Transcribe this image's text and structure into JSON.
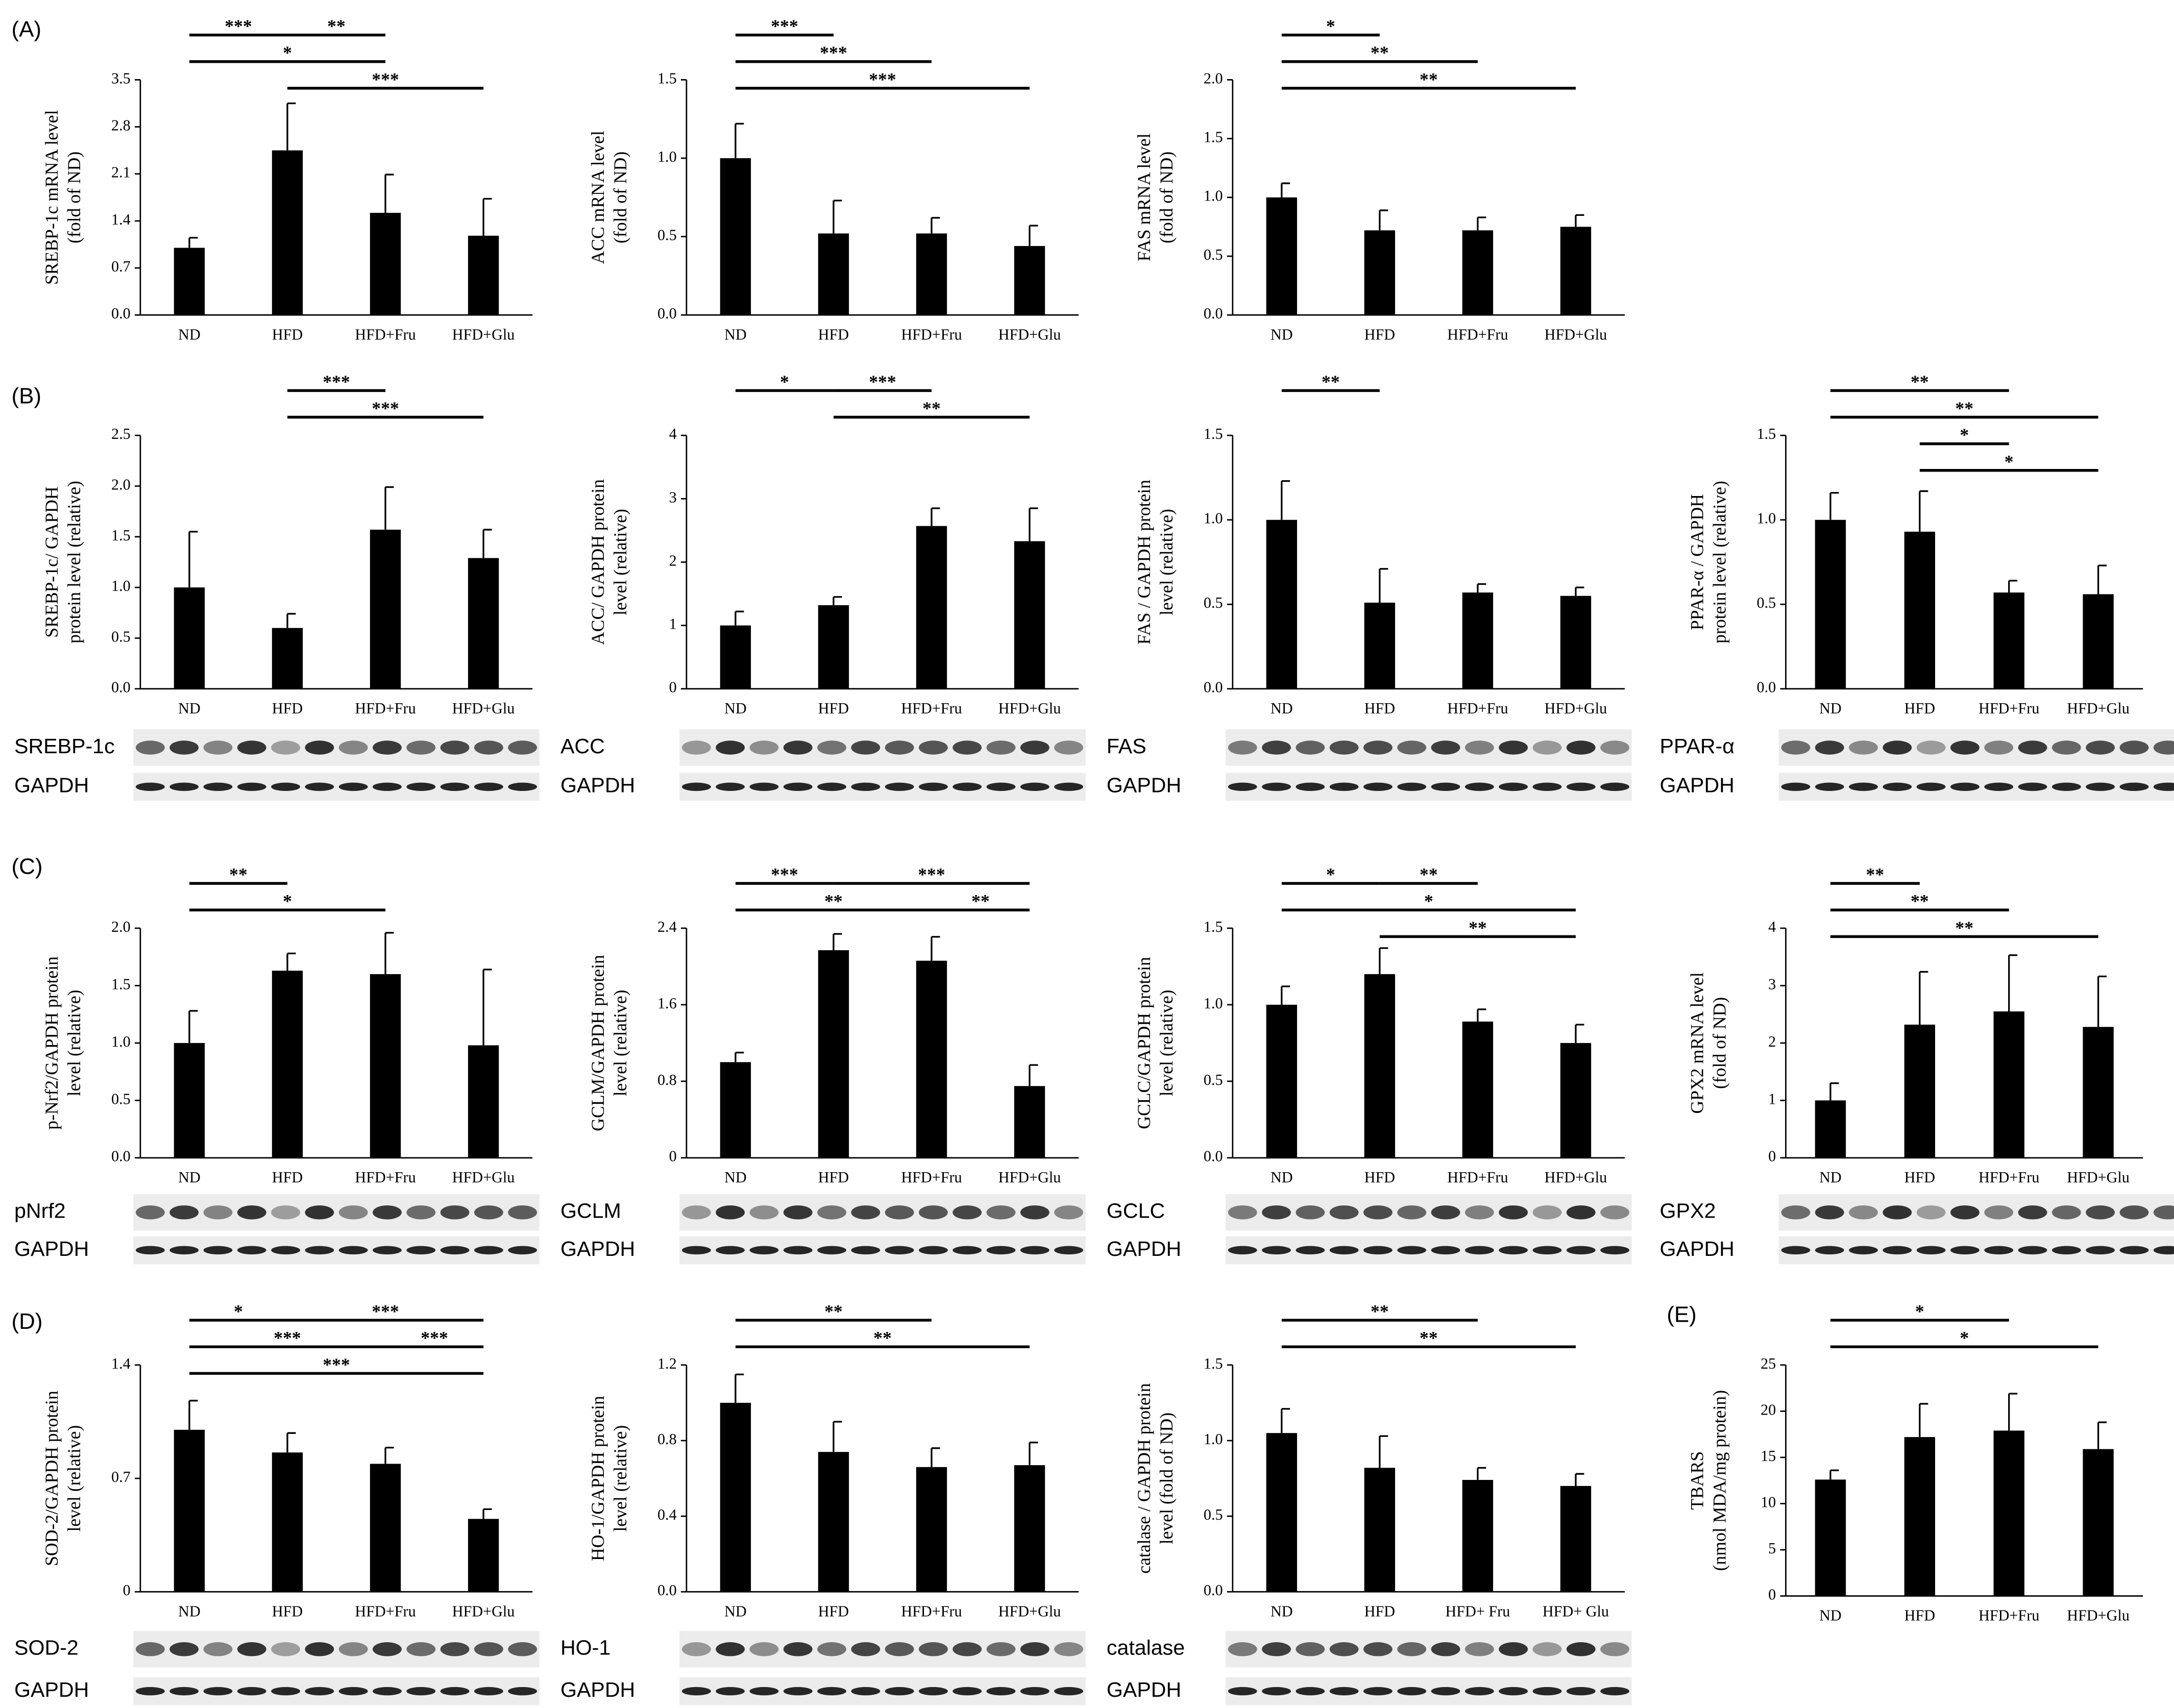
{
  "chart_data": [
    {
      "type": "bar",
      "panel": "(A)",
      "ylabel": [
        "SREBP-1c mRNA level",
        "(fold of ND)"
      ],
      "categories": [
        "ND",
        "HFD",
        "HFD+Fru",
        "HFD+Glu"
      ],
      "values": [
        1.0,
        2.45,
        1.52,
        1.18
      ],
      "errors": [
        0.15,
        0.7,
        0.57,
        0.55
      ],
      "color": "#000000",
      "ylim": [
        0,
        3.5
      ],
      "yticks": [
        {
          "value": 0,
          "label": "0.0"
        },
        0.7,
        1.4,
        2.1,
        2.8,
        3.5
      ],
      "annotations": [
        {
          "text": "***",
          "from": "ND",
          "to": "HFD"
        },
        {
          "text": "**",
          "from": "HFD",
          "to": "HFD+Fru"
        },
        {
          "text": "*",
          "from": "ND",
          "to": "HFD+Fru"
        },
        {
          "text": "***",
          "from": "HFD",
          "to": "HFD+Glu"
        }
      ]
    },
    {
      "type": "bar",
      "ylabel": [
        "ACC mRNA level",
        "(fold of ND)"
      ],
      "categories": [
        "ND",
        "HFD",
        "HFD+Fru",
        "HFD+Glu"
      ],
      "values": [
        1.0,
        0.52,
        0.52,
        0.44
      ],
      "errors": [
        0.22,
        0.21,
        0.1,
        0.13
      ],
      "color": "#000000",
      "ylim": [
        0,
        1.5
      ],
      "yticks": [
        {
          "value": 0,
          "label": "0.0"
        },
        0.5,
        {
          "value": 1,
          "label": "1.0"
        },
        1.5
      ],
      "annotations": [
        {
          "text": "***",
          "from": "ND",
          "to": "HFD"
        },
        {
          "text": "***",
          "from": "ND",
          "to": "HFD+Fru"
        },
        {
          "text": "***",
          "from": "ND",
          "to": "HFD+Glu"
        }
      ]
    },
    {
      "type": "bar",
      "ylabel": [
        "FAS mRNA level",
        "(fold of ND)"
      ],
      "categories": [
        "ND",
        "HFD",
        "HFD+Fru",
        "HFD+Glu"
      ],
      "values": [
        1.0,
        0.72,
        0.72,
        0.75
      ],
      "errors": [
        0.12,
        0.17,
        0.11,
        0.1
      ],
      "color": "#000000",
      "ylim": [
        0,
        2
      ],
      "yticks": [
        {
          "value": 0,
          "label": "0.0"
        },
        0.5,
        {
          "value": 1,
          "label": "1.0"
        },
        1.5,
        {
          "value": 2,
          "label": "2.0"
        }
      ],
      "annotations": [
        {
          "text": "*",
          "from": "ND",
          "to": "HFD"
        },
        {
          "text": "**",
          "from": "ND",
          "to": "HFD+Fru"
        },
        {
          "text": "**",
          "from": "ND",
          "to": "HFD+Glu"
        }
      ]
    },
    {
      "type": "bar",
      "panel": "(B)",
      "ylabel": [
        "SREBP-1c/ GAPDH",
        "protein level  (relative)"
      ],
      "categories": [
        "ND",
        "HFD",
        "HFD+Fru",
        "HFD+Glu"
      ],
      "values": [
        1.0,
        0.6,
        1.57,
        1.29
      ],
      "errors": [
        0.55,
        0.14,
        0.42,
        0.28
      ],
      "color": "#000000",
      "ylim": [
        0,
        2.5
      ],
      "yticks": [
        {
          "value": 0,
          "label": "0.0"
        },
        0.5,
        {
          "value": 1,
          "label": "1.0"
        },
        1.5,
        {
          "value": 2,
          "label": "2.0"
        },
        2.5
      ],
      "annotations": [
        {
          "text": "***",
          "from": "HFD",
          "to": "HFD+Fru"
        },
        {
          "text": "***",
          "from": "HFD",
          "to": "HFD+Glu"
        }
      ],
      "blot_labels": [
        "SREBP-1c",
        "GAPDH"
      ]
    },
    {
      "type": "bar",
      "ylabel": [
        "ACC/ GAPDH protein",
        "level (relative)"
      ],
      "categories": [
        "ND",
        "HFD",
        "HFD+Fru",
        "HFD+Glu"
      ],
      "values": [
        1.0,
        1.32,
        2.57,
        2.33
      ],
      "errors": [
        0.22,
        0.13,
        0.28,
        0.52
      ],
      "color": "#000000",
      "ylim": [
        0,
        4
      ],
      "yticks": [
        0,
        1,
        2,
        3,
        4
      ],
      "annotations": [
        {
          "text": "***",
          "from": "HFD",
          "to": "HFD+Fru"
        },
        {
          "text": "*",
          "from": "ND",
          "to": "HFD"
        },
        {
          "text": "**",
          "from": "HFD",
          "to": "HFD+Glu"
        }
      ],
      "blot_labels": [
        "ACC",
        "GAPDH"
      ]
    },
    {
      "type": "bar",
      "ylabel": [
        "FAS / GAPDH protein",
        "level (relative)"
      ],
      "categories": [
        "ND",
        "HFD",
        "HFD+Fru",
        "HFD+Glu"
      ],
      "values": [
        1.0,
        0.51,
        0.57,
        0.55
      ],
      "errors": [
        0.23,
        0.2,
        0.05,
        0.05
      ],
      "color": "#000000",
      "ylim": [
        0,
        1.5
      ],
      "yticks": [
        {
          "value": 0,
          "label": "0.0"
        },
        0.5,
        {
          "value": 1,
          "label": "1.0"
        },
        1.5
      ],
      "annotations": [
        {
          "text": "**",
          "from": "ND",
          "to": "HFD"
        }
      ],
      "blot_labels": [
        "FAS",
        "GAPDH"
      ]
    },
    {
      "type": "bar",
      "ylabel": [
        "PPAR-α / GAPDH",
        "protein level (relative)"
      ],
      "categories": [
        "ND",
        "HFD",
        "HFD+Fru",
        "HFD+Glu"
      ],
      "values": [
        1.0,
        0.93,
        0.57,
        0.56
      ],
      "errors": [
        0.16,
        0.24,
        0.07,
        0.17
      ],
      "color": "#000000",
      "ylim": [
        0,
        1.5
      ],
      "yticks": [
        {
          "value": 0,
          "label": "0.0"
        },
        0.5,
        {
          "value": 1,
          "label": "1.0"
        },
        1.5
      ],
      "annotations": [
        {
          "text": "**",
          "from": "ND",
          "to": "HFD+Fru"
        },
        {
          "text": "**",
          "from": "ND",
          "to": "HFD+Glu"
        },
        {
          "text": "*",
          "from": "HFD",
          "to": "HFD+Fru"
        },
        {
          "text": "*",
          "from": "HFD",
          "to": "HFD+Glu"
        }
      ],
      "blot_labels": [
        "PPAR-α",
        "GAPDH"
      ]
    },
    {
      "type": "bar",
      "panel": "(C)",
      "ylabel": [
        "p-Nrf2/GAPDH protein",
        "level (relative)"
      ],
      "categories": [
        "ND",
        "HFD",
        "HFD+Fru",
        "HFD+Glu"
      ],
      "values": [
        1.0,
        1.63,
        1.6,
        0.98
      ],
      "errors": [
        0.28,
        0.15,
        0.36,
        0.66
      ],
      "color": "#000000",
      "ylim": [
        0,
        2
      ],
      "yticks": [
        {
          "value": 0,
          "label": "0.0"
        },
        0.5,
        {
          "value": 1,
          "label": "1.0"
        },
        1.5,
        {
          "value": 2,
          "label": "2.0"
        }
      ],
      "annotations": [
        {
          "text": "**",
          "from": "ND",
          "to": "HFD"
        },
        {
          "text": "*",
          "from": "ND",
          "to": "HFD+Fru"
        }
      ],
      "blot_labels": [
        "pNrf2",
        "GAPDH"
      ]
    },
    {
      "type": "bar",
      "ylabel": [
        "GCLM/GAPDH protein",
        "level (relative)"
      ],
      "categories": [
        "ND",
        "HFD",
        "HFD+Fru",
        "HFD+Glu"
      ],
      "values": [
        1.0,
        2.17,
        2.06,
        0.75
      ],
      "errors": [
        0.1,
        0.17,
        0.25,
        0.22
      ],
      "color": "#000000",
      "ylim": [
        0,
        2.4
      ],
      "yticks": [
        0,
        0.8,
        1.6,
        2.4
      ],
      "annotations": [
        {
          "text": "***",
          "from": "ND",
          "to": "HFD"
        },
        {
          "text": "***",
          "from": "HFD",
          "to": "HFD+Glu"
        },
        {
          "text": "**",
          "from": "ND",
          "to": "HFD+Fru"
        },
        {
          "text": "**",
          "from": "HFD+Fru",
          "to": "HFD+Glu"
        }
      ],
      "blot_labels": [
        "GCLM",
        "GAPDH"
      ]
    },
    {
      "type": "bar",
      "ylabel": [
        "GCLC/GAPDH protein",
        "level (relative)"
      ],
      "categories": [
        "ND",
        "HFD",
        "HFD+Fru",
        "HFD+Glu"
      ],
      "values": [
        1.0,
        1.2,
        0.89,
        0.75
      ],
      "errors": [
        0.12,
        0.17,
        0.08,
        0.12
      ],
      "color": "#000000",
      "ylim": [
        0,
        1.5
      ],
      "yticks": [
        {
          "value": 0,
          "label": "0.0"
        },
        0.5,
        {
          "value": 1,
          "label": "1.0"
        },
        1.5
      ],
      "annotations": [
        {
          "text": "*",
          "from": "ND",
          "to": "HFD"
        },
        {
          "text": "**",
          "from": "HFD",
          "to": "HFD+Fru"
        },
        {
          "text": "*",
          "from": "ND",
          "to": "HFD+Glu"
        },
        {
          "text": "**",
          "from": "HFD",
          "to": "HFD+Glu"
        }
      ],
      "blot_labels": [
        "GCLC",
        "GAPDH"
      ]
    },
    {
      "type": "bar",
      "ylabel": [
        "GPX2 mRNA level",
        "(fold of ND)"
      ],
      "categories": [
        "ND",
        "HFD",
        "HFD+Fru",
        "HFD+Glu"
      ],
      "values": [
        1.0,
        2.32,
        2.55,
        2.28
      ],
      "errors": [
        0.3,
        0.92,
        0.98,
        0.88
      ],
      "color": "#000000",
      "ylim": [
        0,
        4
      ],
      "yticks": [
        0,
        1,
        2,
        3,
        4
      ],
      "annotations": [
        {
          "text": "**",
          "from": "ND",
          "to": "HFD"
        },
        {
          "text": "**",
          "from": "ND",
          "to": "HFD+Fru"
        },
        {
          "text": "**",
          "from": "ND",
          "to": "HFD+Glu"
        }
      ],
      "blot_labels": [
        "GPX2",
        "GAPDH"
      ]
    },
    {
      "type": "bar",
      "panel": "(D)",
      "ylabel": [
        "SOD-2/GAPDH protein",
        "level (relative)"
      ],
      "categories": [
        "ND",
        "HFD",
        "HFD+Fru",
        "HFD+Glu"
      ],
      "values": [
        1.0,
        0.86,
        0.79,
        0.45
      ],
      "errors": [
        0.18,
        0.12,
        0.1,
        0.06
      ],
      "color": "#000000",
      "ylim": [
        0,
        1.4
      ],
      "yticks": [
        0,
        0.7,
        1.4
      ],
      "annotations": [
        {
          "text": "*",
          "from": "ND",
          "to": "HFD"
        },
        {
          "text": "***",
          "from": "HFD",
          "to": "HFD+Glu"
        },
        {
          "text": "***",
          "from": "ND",
          "to": "HFD+Fru"
        },
        {
          "text": "***",
          "from": "HFD+Fru",
          "to": "HFD+Glu"
        },
        {
          "text": "***",
          "from": "ND",
          "to": "HFD+Glu"
        }
      ],
      "blot_labels": [
        "SOD-2",
        "GAPDH"
      ]
    },
    {
      "type": "bar",
      "ylabel": [
        "HO-1/GAPDH protein",
        "level (relative)"
      ],
      "categories": [
        "ND",
        "HFD",
        "HFD+Fru",
        "HFD+Glu"
      ],
      "values": [
        1.0,
        0.74,
        0.66,
        0.67
      ],
      "errors": [
        0.15,
        0.16,
        0.1,
        0.12
      ],
      "color": "#000000",
      "ylim": [
        0,
        1.2
      ],
      "yticks": [
        {
          "value": 0,
          "label": "0.0"
        },
        0.4,
        0.8,
        1.2
      ],
      "annotations": [
        {
          "text": "**",
          "from": "ND",
          "to": "HFD+Fru"
        },
        {
          "text": "**",
          "from": "ND",
          "to": "HFD+Glu"
        }
      ],
      "blot_labels": [
        "HO-1",
        "GAPDH"
      ]
    },
    {
      "type": "bar",
      "ylabel": [
        "catalase / GAPDH protein",
        "level (fold of ND)"
      ],
      "categories": [
        "ND",
        "HFD",
        "HFD+ Fru",
        "HFD+ Glu"
      ],
      "values": [
        1.05,
        0.82,
        0.74,
        0.7
      ],
      "errors": [
        0.16,
        0.21,
        0.08,
        0.08
      ],
      "color": "#000000",
      "ylim": [
        0,
        1.5
      ],
      "yticks": [
        {
          "value": 0,
          "label": "0.0"
        },
        0.5,
        {
          "value": 1,
          "label": "1.0"
        },
        1.5
      ],
      "annotations": [
        {
          "text": "**",
          "from": "ND",
          "to": "HFD+ Fru"
        },
        {
          "text": "**",
          "from": "ND",
          "to": "HFD+ Glu"
        }
      ],
      "blot_labels": [
        "catalase",
        "GAPDH"
      ]
    },
    {
      "type": "bar",
      "panel": "(E)",
      "ylabel": [
        "TBARS",
        "(nmol MDA/mg protein)"
      ],
      "categories": [
        "ND",
        "HFD",
        "HFD+Fru",
        "HFD+Glu"
      ],
      "values": [
        12.6,
        17.2,
        17.9,
        15.9
      ],
      "errors": [
        1.0,
        3.6,
        4.0,
        2.9
      ],
      "color": "#000000",
      "ylim": [
        0,
        25
      ],
      "yticks": [
        0,
        5,
        10,
        15,
        20,
        25
      ],
      "annotations": [
        {
          "text": "*",
          "from": "ND",
          "to": "HFD+Fru"
        },
        {
          "text": "*",
          "from": "ND",
          "to": "HFD+Glu"
        }
      ]
    }
  ]
}
